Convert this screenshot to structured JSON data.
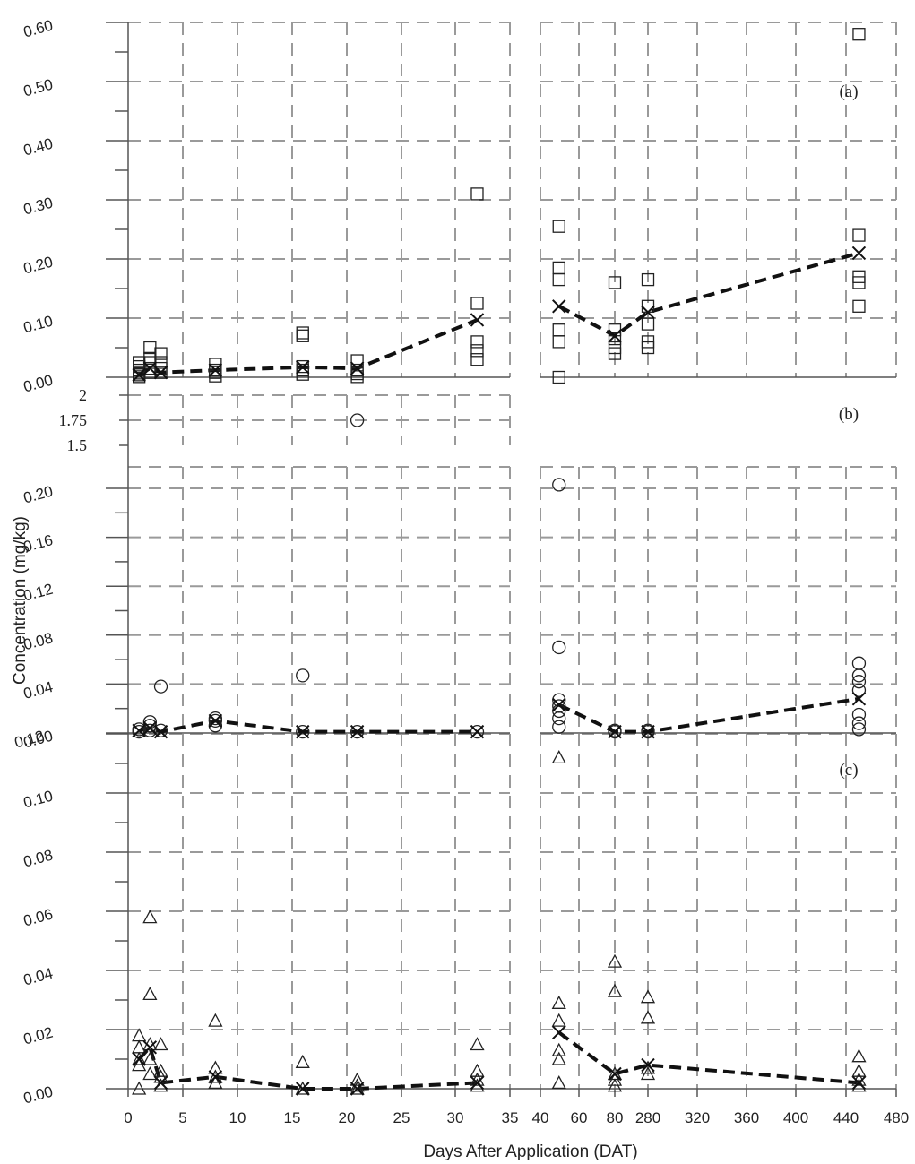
{
  "chart_data": {
    "type": "scatter",
    "xlabel": "Days After Application (DAT)",
    "ylabel": "Concentration (mg/kg)",
    "x_ticks": [
      "0",
      "5",
      "10",
      "15",
      "20",
      "25",
      "30",
      "35",
      "40",
      "60",
      "80",
      "280",
      "320",
      "360",
      "400",
      "440",
      "480"
    ],
    "panels": [
      {
        "label": "(a)",
        "marker": "square",
        "yticks": [
          "0.00",
          "0.10",
          "0.20",
          "0.30",
          "0.40",
          "0.50",
          "0.60"
        ],
        "ylim": [
          0,
          0.6
        ],
        "points": [
          [
            1,
            0.001
          ],
          [
            1,
            0.004
          ],
          [
            1,
            0.007
          ],
          [
            1,
            0.012
          ],
          [
            1,
            0.018
          ],
          [
            1,
            0.025
          ],
          [
            2,
            0.008
          ],
          [
            2,
            0.015
          ],
          [
            2,
            0.025
          ],
          [
            2,
            0.032
          ],
          [
            2,
            0.05
          ],
          [
            3,
            0.008
          ],
          [
            3,
            0.015
          ],
          [
            3,
            0.025
          ],
          [
            3,
            0.04
          ],
          [
            8,
            0.002
          ],
          [
            8,
            0.008
          ],
          [
            8,
            0.012
          ],
          [
            8,
            0.022
          ],
          [
            16,
            0.005
          ],
          [
            16,
            0.012
          ],
          [
            16,
            0.018
          ],
          [
            16,
            0.07
          ],
          [
            16,
            0.075
          ],
          [
            21,
            0.001
          ],
          [
            21,
            0.006
          ],
          [
            21,
            0.012
          ],
          [
            21,
            0.028
          ],
          [
            32,
            0.03
          ],
          [
            32,
            0.045
          ],
          [
            32,
            0.06
          ],
          [
            32,
            0.125
          ],
          [
            32,
            0.31
          ],
          [
            50,
            0.0
          ],
          [
            50,
            0.06
          ],
          [
            50,
            0.08
          ],
          [
            50,
            0.165
          ],
          [
            50,
            0.185
          ],
          [
            50,
            0.255
          ],
          [
            80,
            0.04
          ],
          [
            80,
            0.05
          ],
          [
            80,
            0.065
          ],
          [
            80,
            0.08
          ],
          [
            80,
            0.16
          ],
          [
            280,
            0.05
          ],
          [
            280,
            0.06
          ],
          [
            280,
            0.09
          ],
          [
            280,
            0.12
          ],
          [
            280,
            0.165
          ],
          [
            450,
            0.12
          ],
          [
            450,
            0.16
          ],
          [
            450,
            0.17
          ],
          [
            450,
            0.24
          ],
          [
            450,
            0.58
          ]
        ],
        "mean": [
          [
            1,
            0.004
          ],
          [
            2,
            0.015
          ],
          [
            3,
            0.008
          ],
          [
            8,
            0.012
          ],
          [
            16,
            0.017
          ],
          [
            21,
            0.015
          ],
          [
            32,
            0.097
          ],
          [
            50,
            0.12
          ],
          [
            80,
            0.07
          ],
          [
            280,
            0.11
          ],
          [
            450,
            0.21
          ]
        ]
      },
      {
        "label": "(b)",
        "marker": "circle",
        "yticks": [
          "0.00",
          "0.04",
          "0.08",
          "0.12",
          "0.16",
          "0.20"
        ],
        "ylim": [
          0,
          0.2
        ],
        "break_yticks": [
          "1.5",
          "1.75",
          "2"
        ],
        "break_ylim": [
          1.5,
          2
        ],
        "break_points": [
          [
            21,
            1.75
          ]
        ],
        "points": [
          [
            1,
            0.001
          ],
          [
            1,
            0.003
          ],
          [
            2,
            0.002
          ],
          [
            2,
            0.006
          ],
          [
            2,
            0.009
          ],
          [
            3,
            0.002
          ],
          [
            3,
            0.038
          ],
          [
            8,
            0.006
          ],
          [
            8,
            0.01
          ],
          [
            8,
            0.012
          ],
          [
            16,
            0.001
          ],
          [
            16,
            0.047
          ],
          [
            21,
            0.001
          ],
          [
            32,
            0.001
          ],
          [
            50,
            0.005
          ],
          [
            50,
            0.012
          ],
          [
            50,
            0.018
          ],
          [
            50,
            0.022
          ],
          [
            50,
            0.027
          ],
          [
            50,
            0.07
          ],
          [
            50,
            0.203
          ],
          [
            80,
            0.001
          ],
          [
            80,
            0.002
          ],
          [
            280,
            0.001
          ],
          [
            280,
            0.002
          ],
          [
            450,
            0.003
          ],
          [
            450,
            0.008
          ],
          [
            450,
            0.015
          ],
          [
            450,
            0.035
          ],
          [
            450,
            0.042
          ],
          [
            450,
            0.047
          ],
          [
            450,
            0.057
          ]
        ],
        "mean": [
          [
            1,
            0.002
          ],
          [
            2,
            0.004
          ],
          [
            3,
            0.001
          ],
          [
            8,
            0.01
          ],
          [
            16,
            0.001
          ],
          [
            21,
            0.001
          ],
          [
            32,
            0.001
          ],
          [
            50,
            0.023
          ],
          [
            80,
            0.001
          ],
          [
            280,
            0.001
          ],
          [
            450,
            0.028
          ]
        ]
      },
      {
        "label": "(c)",
        "marker": "triangle",
        "yticks": [
          "0.00",
          "0.02",
          "0.04",
          "0.06",
          "0.08",
          "0.10",
          "0.12"
        ],
        "ylim": [
          0,
          0.12
        ],
        "points": [
          [
            1,
            0.0
          ],
          [
            1,
            0.008
          ],
          [
            1,
            0.01
          ],
          [
            1,
            0.014
          ],
          [
            1,
            0.018
          ],
          [
            2,
            0.005
          ],
          [
            2,
            0.01
          ],
          [
            2,
            0.015
          ],
          [
            2,
            0.032
          ],
          [
            2,
            0.058
          ],
          [
            3,
            0.001
          ],
          [
            3,
            0.004
          ],
          [
            3,
            0.006
          ],
          [
            3,
            0.015
          ],
          [
            8,
            0.002
          ],
          [
            8,
            0.004
          ],
          [
            8,
            0.007
          ],
          [
            8,
            0.023
          ],
          [
            16,
            0.0
          ],
          [
            16,
            0.009
          ],
          [
            21,
            0.0
          ],
          [
            21,
            0.001
          ],
          [
            21,
            0.003
          ],
          [
            32,
            0.001
          ],
          [
            32,
            0.003
          ],
          [
            32,
            0.006
          ],
          [
            32,
            0.015
          ],
          [
            50,
            0.002
          ],
          [
            50,
            0.01
          ],
          [
            50,
            0.013
          ],
          [
            50,
            0.023
          ],
          [
            50,
            0.029
          ],
          [
            50,
            0.112
          ],
          [
            80,
            0.001
          ],
          [
            80,
            0.003
          ],
          [
            80,
            0.005
          ],
          [
            80,
            0.033
          ],
          [
            80,
            0.043
          ],
          [
            280,
            0.005
          ],
          [
            280,
            0.007
          ],
          [
            280,
            0.024
          ],
          [
            280,
            0.031
          ],
          [
            450,
            0.001
          ],
          [
            450,
            0.003
          ],
          [
            450,
            0.006
          ],
          [
            450,
            0.011
          ]
        ],
        "mean": [
          [
            1,
            0.01
          ],
          [
            2,
            0.014
          ],
          [
            3,
            0.002
          ],
          [
            8,
            0.004
          ],
          [
            16,
            0.0
          ],
          [
            21,
            0.0
          ],
          [
            32,
            0.002
          ],
          [
            50,
            0.019
          ],
          [
            80,
            0.005
          ],
          [
            280,
            0.008
          ],
          [
            450,
            0.002
          ]
        ]
      }
    ]
  }
}
